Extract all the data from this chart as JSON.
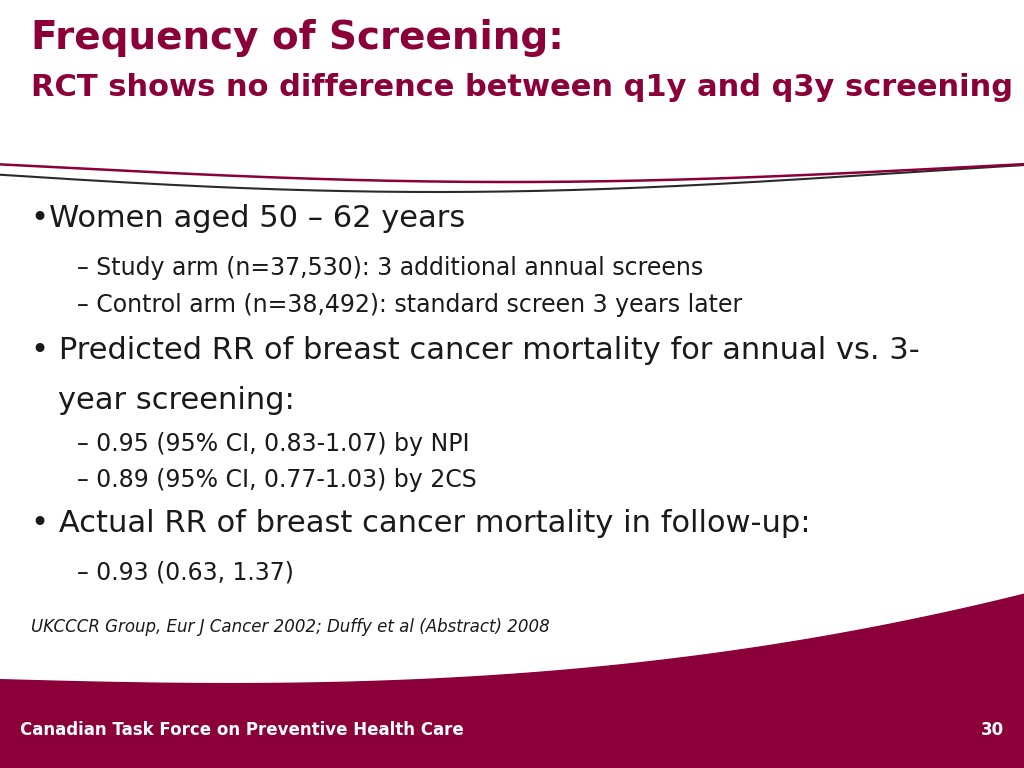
{
  "title_line1": "Frequency of Screening:",
  "title_line2": "RCT shows no difference between q1y and q3y screening",
  "title_color": "#8B0038",
  "background_color": "#FFFFFF",
  "footer_bg_color": "#8B0038",
  "footer_text": "Canadian Task Force on Preventive Health Care",
  "footer_page": "30",
  "footer_text_color": "#FFFFFF",
  "citation": "UKCCCR Group, Eur J Cancer 2002; Duffy et al (Abstract) 2008",
  "bullet1": "•Women aged 50 – 62 years",
  "sub1a": "– Study arm (n=37,530): 3 additional annual screens",
  "sub1b": "– Control arm (n=38,492): standard screen 3 years later",
  "bullet2_line1": "• Predicted RR of breast cancer mortality for annual vs. 3-",
  "bullet2_line2": "year screening:",
  "sub2a": "– 0.95 (95% CI, 0.83-1.07) by NPI",
  "sub2b": "– 0.89 (95% CI, 0.77-1.03) by 2CS",
  "bullet3": "• Actual RR of breast cancer mortality in follow-up:",
  "sub3a": "– 0.93 (0.63, 1.37)",
  "text_color": "#1a1a1a",
  "wave_color1": "#8B0038",
  "wave_color2": "#2a2a2a",
  "wave_color3": "#b05070",
  "title_fs1": 28,
  "title_fs2": 22,
  "body_fs_large": 22,
  "body_fs_small": 17,
  "citation_fs": 12,
  "footer_fs": 12
}
